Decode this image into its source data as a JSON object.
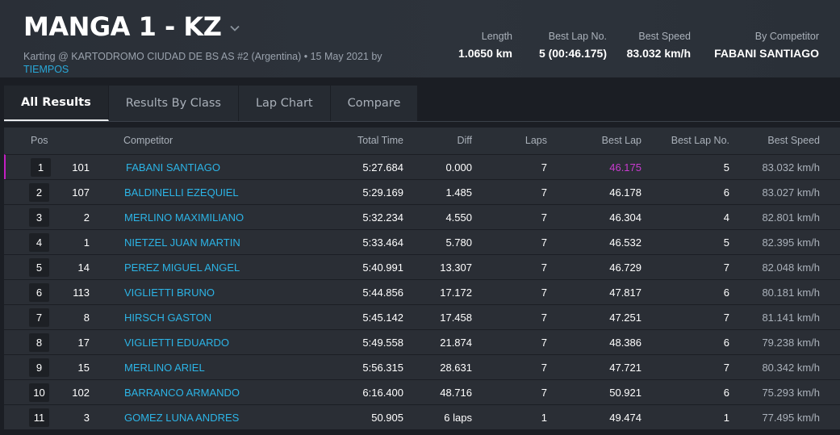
{
  "header": {
    "title": "MANGA 1 - KZ",
    "subtitle_main": "Karting @ KARTODROMO CIUDAD DE BS AS #2 (Argentina) • 15 May 2021 by",
    "subtitle_link": "TIEMPOS",
    "stats": [
      {
        "label": "Length",
        "value": "1.0650 km"
      },
      {
        "label": "Best Lap No.",
        "value": "5 (00:46.175)"
      },
      {
        "label": "Best Speed",
        "value": "83.032 km/h"
      },
      {
        "label": "By Competitor",
        "value": "FABANI SANTIAGO"
      }
    ]
  },
  "tabs": [
    {
      "label": "All Results",
      "active": true
    },
    {
      "label": "Results By Class",
      "active": false
    },
    {
      "label": "Lap Chart",
      "active": false
    },
    {
      "label": "Compare",
      "active": false
    }
  ],
  "table": {
    "columns": {
      "pos": "Pos",
      "competitor": "Competitor",
      "total_time": "Total Time",
      "diff": "Diff",
      "laps": "Laps",
      "best_lap": "Best Lap",
      "best_lap_no": "Best Lap No.",
      "best_speed": "Best Speed"
    },
    "rows": [
      {
        "pos": "1",
        "no": "101",
        "competitor": "FABANI SANTIAGO",
        "total_time": "5:27.684",
        "diff": "0.000",
        "laps": "7",
        "best_lap": "46.175",
        "best_lap_no": "5",
        "best_speed": "83.032 km/h"
      },
      {
        "pos": "2",
        "no": "107",
        "competitor": "BALDINELLI EZEQUIEL",
        "total_time": "5:29.169",
        "diff": "1.485",
        "laps": "7",
        "best_lap": "46.178",
        "best_lap_no": "6",
        "best_speed": "83.027 km/h"
      },
      {
        "pos": "3",
        "no": "2",
        "competitor": "MERLINO MAXIMILIANO",
        "total_time": "5:32.234",
        "diff": "4.550",
        "laps": "7",
        "best_lap": "46.304",
        "best_lap_no": "4",
        "best_speed": "82.801 km/h"
      },
      {
        "pos": "4",
        "no": "1",
        "competitor": "NIETZEL JUAN MARTIN",
        "total_time": "5:33.464",
        "diff": "5.780",
        "laps": "7",
        "best_lap": "46.532",
        "best_lap_no": "5",
        "best_speed": "82.395 km/h"
      },
      {
        "pos": "5",
        "no": "14",
        "competitor": "PEREZ MIGUEL ANGEL",
        "total_time": "5:40.991",
        "diff": "13.307",
        "laps": "7",
        "best_lap": "46.729",
        "best_lap_no": "7",
        "best_speed": "82.048 km/h"
      },
      {
        "pos": "6",
        "no": "113",
        "competitor": "VIGLIETTI BRUNO",
        "total_time": "5:44.856",
        "diff": "17.172",
        "laps": "7",
        "best_lap": "47.817",
        "best_lap_no": "6",
        "best_speed": "80.181 km/h"
      },
      {
        "pos": "7",
        "no": "8",
        "competitor": "HIRSCH GASTON",
        "total_time": "5:45.142",
        "diff": "17.458",
        "laps": "7",
        "best_lap": "47.251",
        "best_lap_no": "7",
        "best_speed": "81.141 km/h"
      },
      {
        "pos": "8",
        "no": "17",
        "competitor": "VIGLIETTI EDUARDO",
        "total_time": "5:49.558",
        "diff": "21.874",
        "laps": "7",
        "best_lap": "48.386",
        "best_lap_no": "6",
        "best_speed": "79.238 km/h"
      },
      {
        "pos": "9",
        "no": "15",
        "competitor": "MERLINO ARIEL",
        "total_time": "5:56.315",
        "diff": "28.631",
        "laps": "7",
        "best_lap": "47.721",
        "best_lap_no": "7",
        "best_speed": "80.342 km/h"
      },
      {
        "pos": "10",
        "no": "102",
        "competitor": "BARRANCO ARMANDO",
        "total_time": "6:16.400",
        "diff": "48.716",
        "laps": "7",
        "best_lap": "50.921",
        "best_lap_no": "6",
        "best_speed": "75.293 km/h"
      },
      {
        "pos": "11",
        "no": "3",
        "competitor": "GOMEZ LUNA ANDRES",
        "total_time": "50.905",
        "diff": "6 laps",
        "laps": "1",
        "best_lap": "49.474",
        "best_lap_no": "1",
        "best_speed": "77.495 km/h"
      }
    ]
  },
  "colors": {
    "link": "#2cb4e6",
    "best_lap_highlight": "#c93bd0",
    "leader_marker": "#c31fc3"
  },
  "icons": {
    "title_dropdown": "chevron-down-icon"
  }
}
